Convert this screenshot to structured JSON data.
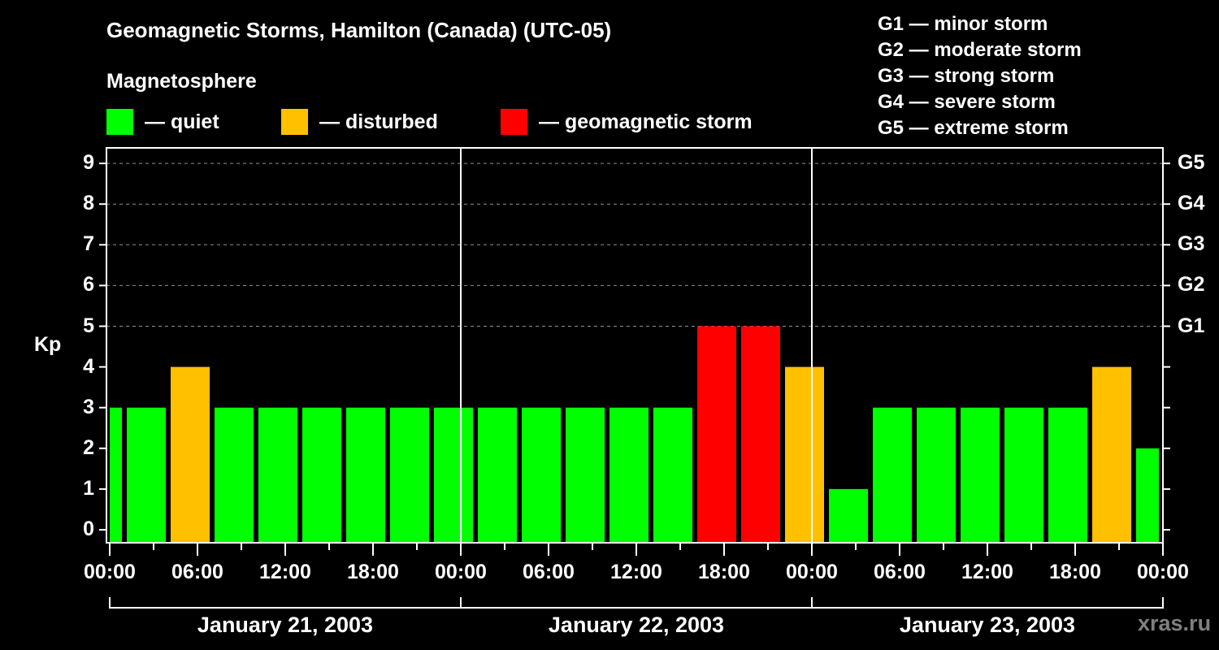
{
  "header": {
    "title": "Geomagnetic Storms, Hamilton (Canada) (UTC-05)",
    "subtitle": "Magnetosphere"
  },
  "legend": [
    {
      "label": "— quiet",
      "color": "#00ff00"
    },
    {
      "label": "— disturbed",
      "color": "#ffc000"
    },
    {
      "label": "— geomagnetic storm",
      "color": "#ff0000"
    }
  ],
  "storm_scale": [
    "G1 — minor storm",
    "G2 — moderate storm",
    "G3 — strong storm",
    "G4 — severe storm",
    "G5 — extreme storm"
  ],
  "watermark": "xras.ru",
  "chart_data": {
    "type": "bar",
    "title": "Geomagnetic Storms, Hamilton (Canada) (UTC-05)",
    "ylabel": "Kp",
    "xlabel": "",
    "ylim": [
      0,
      9
    ],
    "y_ticks": [
      "0",
      "1",
      "2",
      "3",
      "4",
      "5",
      "6",
      "7",
      "8",
      "9"
    ],
    "right_axis_ticks": [
      {
        "kp": 5,
        "label": "G1"
      },
      {
        "kp": 6,
        "label": "G2"
      },
      {
        "kp": 7,
        "label": "G3"
      },
      {
        "kp": 8,
        "label": "G4"
      },
      {
        "kp": 9,
        "label": "G5"
      }
    ],
    "x_tick_labels": [
      "00:00",
      "06:00",
      "12:00",
      "18:00",
      "00:00",
      "06:00",
      "12:00",
      "18:00",
      "00:00",
      "06:00",
      "12:00",
      "18:00",
      "00:00"
    ],
    "date_labels": [
      "January 21, 2003",
      "January 22, 2003",
      "January 23, 2003"
    ],
    "grid": "dashed horizontal at Kp 5-9",
    "bar_interval_hours": 3,
    "bars": [
      {
        "start_hour": -2,
        "end_hour": 1,
        "kp": 3,
        "status": "quiet"
      },
      {
        "start_hour": 1,
        "end_hour": 4,
        "kp": 3,
        "status": "quiet"
      },
      {
        "start_hour": 4,
        "end_hour": 7,
        "kp": 4,
        "status": "disturbed"
      },
      {
        "start_hour": 7,
        "end_hour": 10,
        "kp": 3,
        "status": "quiet"
      },
      {
        "start_hour": 10,
        "end_hour": 13,
        "kp": 3,
        "status": "quiet"
      },
      {
        "start_hour": 13,
        "end_hour": 16,
        "kp": 3,
        "status": "quiet"
      },
      {
        "start_hour": 16,
        "end_hour": 19,
        "kp": 3,
        "status": "quiet"
      },
      {
        "start_hour": 19,
        "end_hour": 22,
        "kp": 3,
        "status": "quiet"
      },
      {
        "start_hour": 22,
        "end_hour": 25,
        "kp": 3,
        "status": "quiet"
      },
      {
        "start_hour": 25,
        "end_hour": 28,
        "kp": 3,
        "status": "quiet"
      },
      {
        "start_hour": 28,
        "end_hour": 31,
        "kp": 3,
        "status": "quiet"
      },
      {
        "start_hour": 31,
        "end_hour": 34,
        "kp": 3,
        "status": "quiet"
      },
      {
        "start_hour": 34,
        "end_hour": 37,
        "kp": 3,
        "status": "quiet"
      },
      {
        "start_hour": 37,
        "end_hour": 40,
        "kp": 3,
        "status": "quiet"
      },
      {
        "start_hour": 40,
        "end_hour": 43,
        "kp": 5,
        "status": "storm"
      },
      {
        "start_hour": 43,
        "end_hour": 46,
        "kp": 5,
        "status": "storm"
      },
      {
        "start_hour": 46,
        "end_hour": 49,
        "kp": 4,
        "status": "disturbed"
      },
      {
        "start_hour": 49,
        "end_hour": 52,
        "kp": 1,
        "status": "quiet"
      },
      {
        "start_hour": 52,
        "end_hour": 55,
        "kp": 3,
        "status": "quiet"
      },
      {
        "start_hour": 55,
        "end_hour": 58,
        "kp": 3,
        "status": "quiet"
      },
      {
        "start_hour": 58,
        "end_hour": 61,
        "kp": 3,
        "status": "quiet"
      },
      {
        "start_hour": 61,
        "end_hour": 64,
        "kp": 3,
        "status": "quiet"
      },
      {
        "start_hour": 64,
        "end_hour": 67,
        "kp": 3,
        "status": "quiet"
      },
      {
        "start_hour": 67,
        "end_hour": 70,
        "kp": 4,
        "status": "disturbed"
      },
      {
        "start_hour": 70,
        "end_hour": 72,
        "kp": 2,
        "status": "quiet"
      }
    ],
    "colors": {
      "quiet": "#00ff00",
      "disturbed": "#ffc000",
      "storm": "#ff0000"
    }
  }
}
